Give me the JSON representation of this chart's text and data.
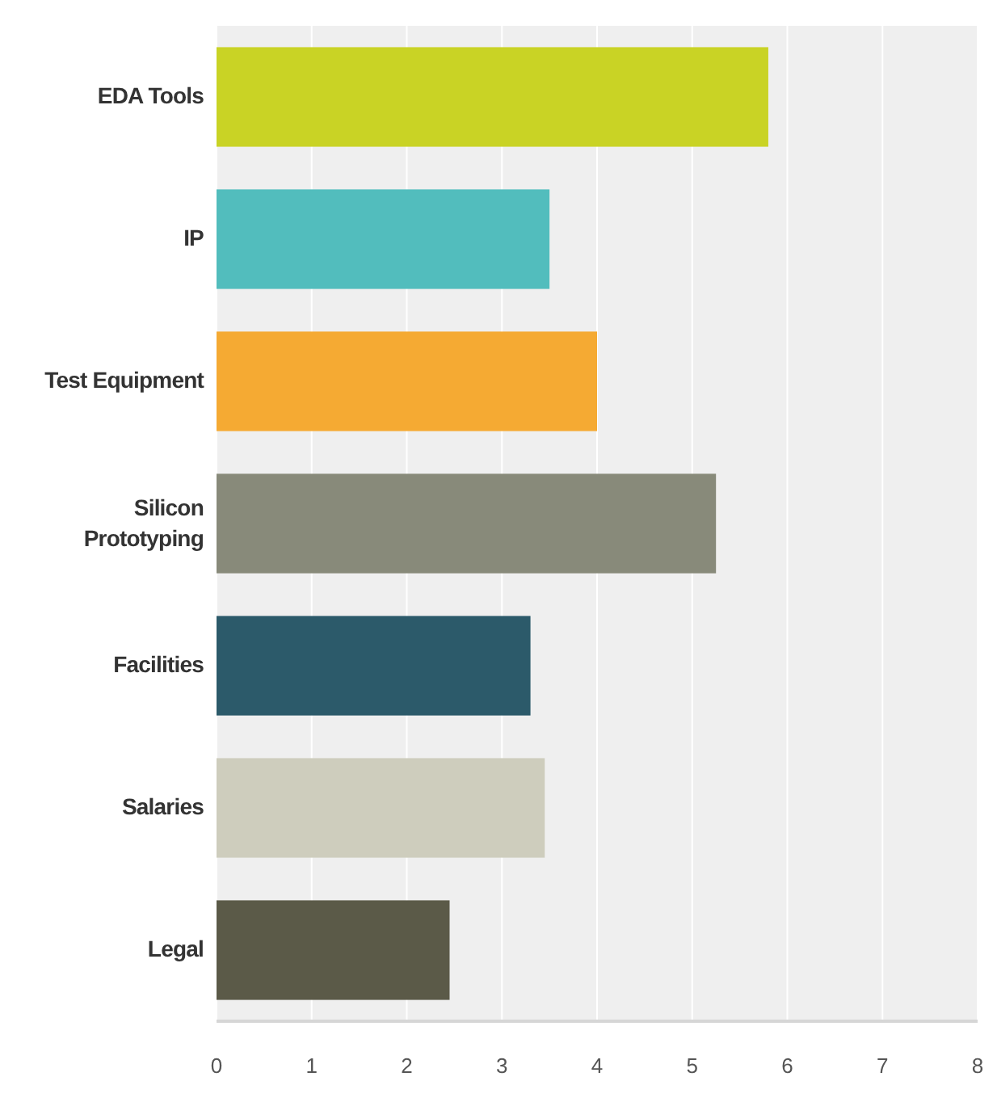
{
  "chart_data": {
    "type": "bar",
    "orientation": "horizontal",
    "categories": [
      "EDA Tools",
      "IP",
      "Test Equipment",
      "Silicon Prototyping",
      "Facilities",
      "Salaries",
      "Legal"
    ],
    "values": [
      5.8,
      3.5,
      4.0,
      5.25,
      3.3,
      3.45,
      2.45
    ],
    "colors": [
      "#c9d325",
      "#52bdbd",
      "#f5aa33",
      "#888a7a",
      "#2c5a6a",
      "#cecdbd",
      "#5b5a48"
    ],
    "xlim": [
      0,
      8
    ],
    "xticks": [
      0,
      1,
      2,
      3,
      4,
      5,
      6,
      7,
      8
    ],
    "grid": "x"
  }
}
